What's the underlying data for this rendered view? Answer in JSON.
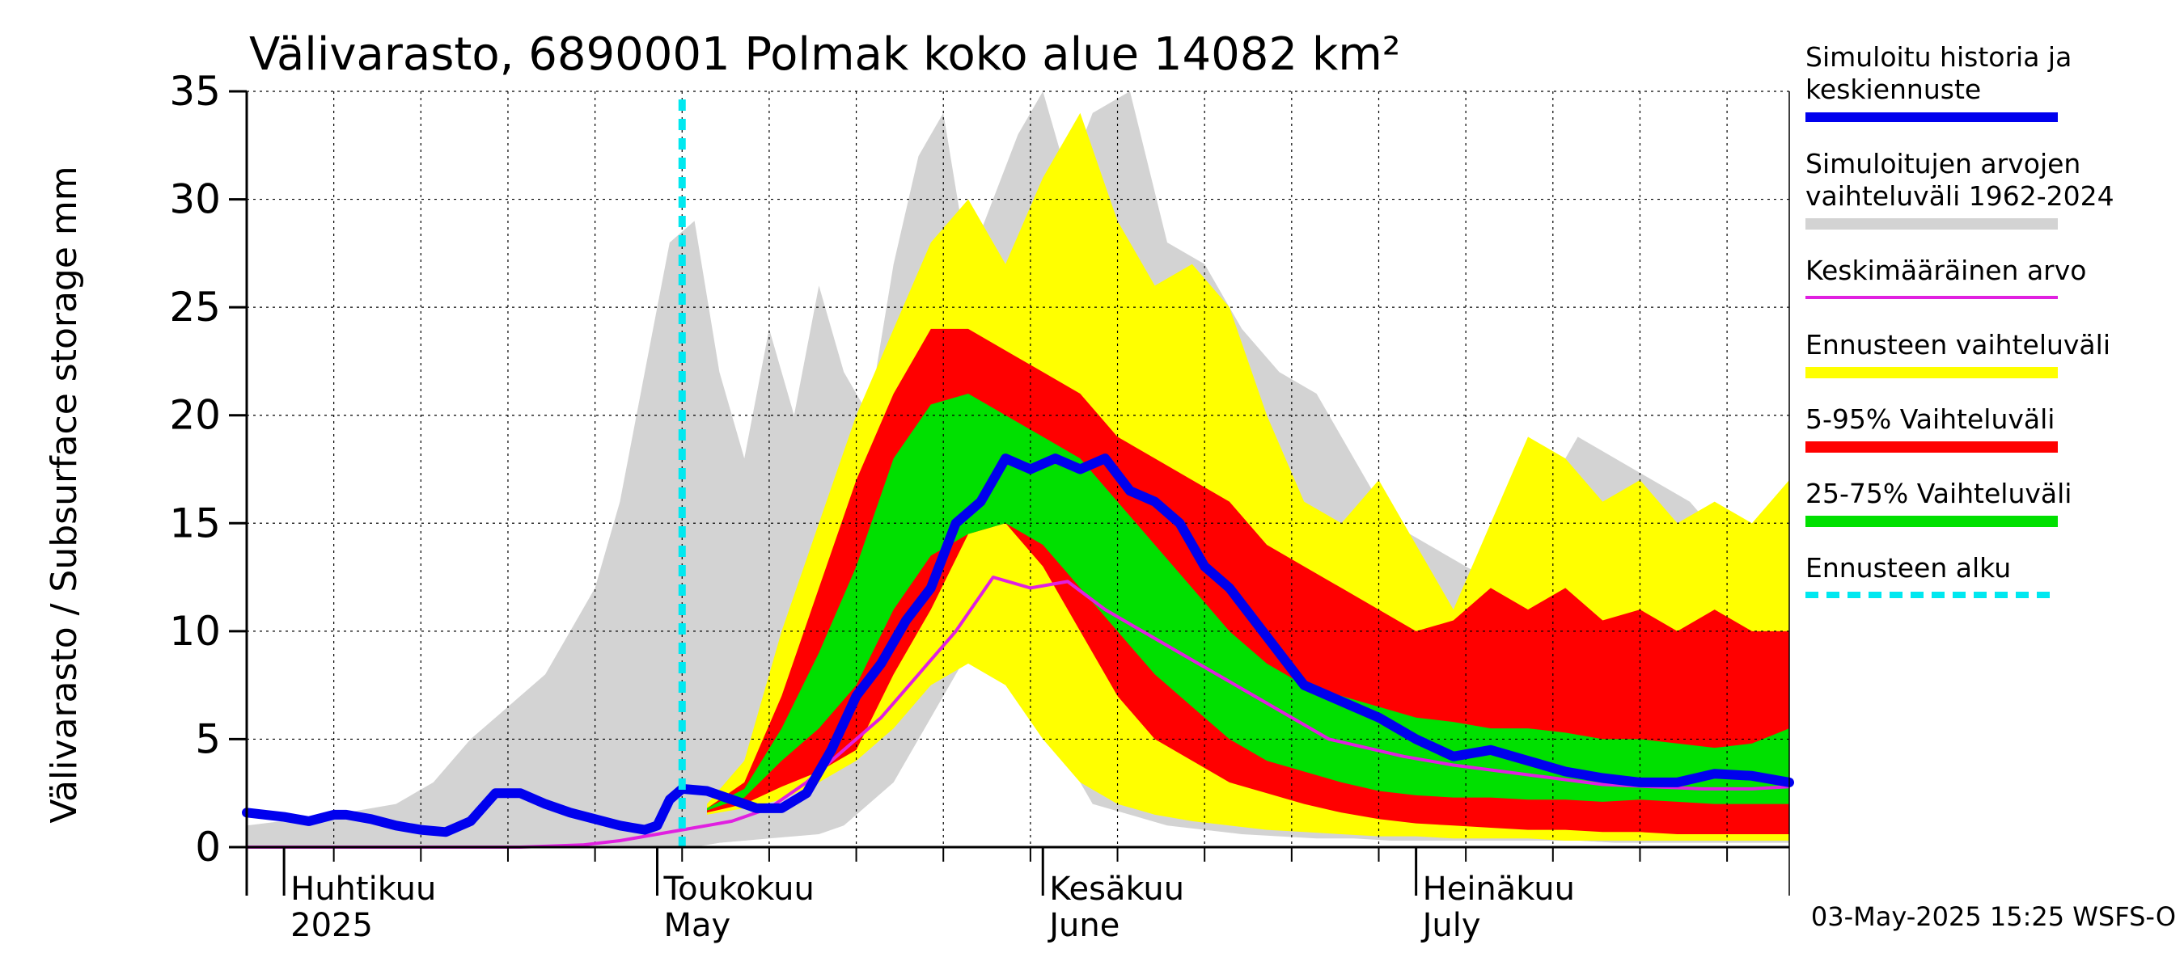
{
  "chart_data": {
    "type": "area",
    "title": "Välivarasto, 6890001 Polmak koko alue 14082 km²",
    "ylabel": "Välivarasto / Subsurface storage  mm",
    "ylim": [
      0,
      35
    ],
    "yticks": [
      0,
      5,
      10,
      15,
      20,
      25,
      30,
      35
    ],
    "x_start": "2025-03-29",
    "x_end": "2025-07-31",
    "month_labels": [
      {
        "date": "2025-04-01",
        "fi": "Huhtikuu",
        "en": "2025"
      },
      {
        "date": "2025-05-01",
        "fi": "Toukokuu",
        "en": "May"
      },
      {
        "date": "2025-06-01",
        "fi": "Kesäkuu",
        "en": "June"
      },
      {
        "date": "2025-07-01",
        "fi": "Heinäkuu",
        "en": "July"
      }
    ],
    "forecast_start": "2025-05-03",
    "footer": "03-May-2025 15:25 WSFS-O",
    "colors": {
      "history": "#0000ee",
      "hist_range": "#d3d3d3",
      "mean": "#e020e0",
      "forecast_range": "#ffff00",
      "p5_95": "#ff0000",
      "p25_75": "#00e000",
      "forecast_start": "#00e8f0",
      "white_min": "#ffffff",
      "grid": "#000000"
    },
    "legend": [
      {
        "key": "history",
        "lines": [
          "Simuloitu historia ja",
          "keskiennuste"
        ],
        "style": "line-thick",
        "color": "#0000ee"
      },
      {
        "key": "hist_range",
        "lines": [
          "Simuloitujen arvojen",
          "vaihteluväli 1962-2024"
        ],
        "style": "band",
        "color": "#d3d3d3"
      },
      {
        "key": "mean",
        "lines": [
          "Keskimääräinen arvo"
        ],
        "style": "line-thin",
        "color": "#e020e0"
      },
      {
        "key": "forecast_range",
        "lines": [
          "Ennusteen vaihteluväli"
        ],
        "style": "band",
        "color": "#ffff00"
      },
      {
        "key": "p5_95",
        "lines": [
          "5-95% Vaihteluväli"
        ],
        "style": "band",
        "color": "#ff0000"
      },
      {
        "key": "p25_75",
        "lines": [
          "25-75% Vaihteluväli"
        ],
        "style": "band",
        "color": "#00e000"
      },
      {
        "key": "forecast_start",
        "lines": [
          "Ennusteen alku"
        ],
        "style": "dashed",
        "color": "#00e8f0"
      }
    ],
    "hist_range": {
      "dates": [
        "2025-03-29",
        "2025-04-05",
        "2025-04-10",
        "2025-04-13",
        "2025-04-16",
        "2025-04-18",
        "2025-04-20",
        "2025-04-22",
        "2025-04-24",
        "2025-04-26",
        "2025-04-28",
        "2025-04-30",
        "2025-05-02",
        "2025-05-04",
        "2025-05-06",
        "2025-05-08",
        "2025-05-10",
        "2025-05-12",
        "2025-05-14",
        "2025-05-16",
        "2025-05-18",
        "2025-05-20",
        "2025-05-22",
        "2025-05-24",
        "2025-05-26",
        "2025-05-28",
        "2025-05-30",
        "2025-06-01",
        "2025-06-03",
        "2025-06-05",
        "2025-06-08",
        "2025-06-11",
        "2025-06-14",
        "2025-06-17",
        "2025-06-20",
        "2025-06-23",
        "2025-06-26",
        "2025-06-29",
        "2025-07-02",
        "2025-07-05",
        "2025-07-08",
        "2025-07-11",
        "2025-07-14",
        "2025-07-17",
        "2025-07-20",
        "2025-07-23",
        "2025-07-26",
        "2025-07-29",
        "2025-07-31"
      ],
      "low": [
        0,
        0,
        0,
        0,
        0,
        0,
        0,
        0,
        0,
        0,
        0,
        0,
        0,
        0,
        0.2,
        0.3,
        0.4,
        0.5,
        0.6,
        1,
        2,
        3,
        5,
        7,
        9,
        10.5,
        10,
        8,
        4,
        2,
        1.5,
        1,
        0.8,
        0.6,
        0.5,
        0.4,
        0.4,
        0.3,
        0.3,
        0.3,
        0.3,
        0.3,
        0.3,
        0.2,
        0.2,
        0.2,
        0.2,
        0.2,
        0.2
      ],
      "high": [
        1,
        1.5,
        2,
        3,
        5,
        6,
        7,
        8,
        10,
        12,
        16,
        22,
        28,
        29,
        22,
        18,
        24,
        20,
        26,
        22,
        20,
        27,
        32,
        34,
        27,
        30,
        33,
        35,
        31,
        34,
        35,
        28,
        27,
        24,
        22,
        21,
        18,
        15,
        14,
        13,
        12,
        16,
        19,
        18,
        17,
        16,
        14,
        15,
        15
      ]
    },
    "forecast_range": {
      "dates": [
        "2025-05-05",
        "2025-05-08",
        "2025-05-11",
        "2025-05-14",
        "2025-05-17",
        "2025-05-20",
        "2025-05-23",
        "2025-05-26",
        "2025-05-29",
        "2025-06-01",
        "2025-06-04",
        "2025-06-07",
        "2025-06-10",
        "2025-06-13",
        "2025-06-16",
        "2025-06-19",
        "2025-06-22",
        "2025-06-25",
        "2025-06-28",
        "2025-07-01",
        "2025-07-04",
        "2025-07-07",
        "2025-07-10",
        "2025-07-13",
        "2025-07-16",
        "2025-07-19",
        "2025-07-22",
        "2025-07-25",
        "2025-07-28",
        "2025-07-31"
      ],
      "low": [
        1.5,
        1.8,
        2.2,
        3,
        4,
        5.5,
        7.5,
        8.5,
        7.5,
        5,
        3,
        2,
        1.5,
        1.2,
        1,
        0.8,
        0.7,
        0.6,
        0.5,
        0.5,
        0.4,
        0.4,
        0.4,
        0.3,
        0.3,
        0.3,
        0.3,
        0.3,
        0.3,
        0.3
      ],
      "high": [
        2,
        4,
        10,
        15,
        20,
        24,
        28,
        30,
        27,
        31,
        34,
        29,
        26,
        27,
        25,
        20,
        16,
        15,
        17,
        14,
        11,
        15,
        19,
        18,
        16,
        17,
        15,
        16,
        15,
        17
      ]
    },
    "p5_95": {
      "dates": [
        "2025-05-05",
        "2025-05-08",
        "2025-05-11",
        "2025-05-14",
        "2025-05-17",
        "2025-05-20",
        "2025-05-23",
        "2025-05-26",
        "2025-05-29",
        "2025-06-01",
        "2025-06-04",
        "2025-06-07",
        "2025-06-10",
        "2025-06-13",
        "2025-06-16",
        "2025-06-19",
        "2025-06-22",
        "2025-06-25",
        "2025-06-28",
        "2025-07-01",
        "2025-07-04",
        "2025-07-07",
        "2025-07-10",
        "2025-07-13",
        "2025-07-16",
        "2025-07-19",
        "2025-07-22",
        "2025-07-25",
        "2025-07-28",
        "2025-07-31"
      ],
      "low": [
        1.6,
        2,
        2.8,
        3.5,
        4.5,
        8,
        11,
        14.5,
        15,
        13,
        10,
        7,
        5,
        4,
        3,
        2.5,
        2,
        1.6,
        1.3,
        1.1,
        1,
        0.9,
        0.8,
        0.8,
        0.7,
        0.7,
        0.6,
        0.6,
        0.6,
        0.6
      ],
      "high": [
        1.8,
        3,
        7,
        12,
        17,
        21,
        24,
        24,
        23,
        22,
        21,
        19,
        18,
        17,
        16,
        14,
        13,
        12,
        11,
        10,
        10.5,
        12,
        11,
        12,
        10.5,
        11,
        10,
        11,
        10,
        10
      ]
    },
    "p25_75": {
      "dates": [
        "2025-05-05",
        "2025-05-08",
        "2025-05-11",
        "2025-05-14",
        "2025-05-17",
        "2025-05-20",
        "2025-05-23",
        "2025-05-26",
        "2025-05-29",
        "2025-06-01",
        "2025-06-04",
        "2025-06-07",
        "2025-06-10",
        "2025-06-13",
        "2025-06-16",
        "2025-06-19",
        "2025-06-22",
        "2025-06-25",
        "2025-06-28",
        "2025-07-01",
        "2025-07-04",
        "2025-07-07",
        "2025-07-10",
        "2025-07-13",
        "2025-07-16",
        "2025-07-19",
        "2025-07-22",
        "2025-07-25",
        "2025-07-28",
        "2025-07-31"
      ],
      "low": [
        1.7,
        2.3,
        4,
        5.5,
        7.5,
        11,
        13.5,
        14.5,
        15,
        14,
        12,
        10,
        8,
        6.5,
        5,
        4,
        3.5,
        3,
        2.6,
        2.4,
        2.3,
        2.3,
        2.2,
        2.2,
        2.1,
        2.2,
        2.1,
        2,
        2,
        2
      ],
      "high": [
        1.8,
        2.7,
        5.5,
        9,
        13,
        18,
        20.5,
        21,
        20,
        19,
        18,
        16,
        14,
        12,
        10,
        8.5,
        7.5,
        7,
        6.5,
        6,
        5.8,
        5.5,
        5.5,
        5.3,
        5,
        5,
        4.8,
        4.6,
        4.8,
        5.5
      ]
    },
    "history": {
      "dates": [
        "2025-03-29",
        "2025-04-01",
        "2025-04-03",
        "2025-04-05",
        "2025-04-06",
        "2025-04-08",
        "2025-04-10",
        "2025-04-12",
        "2025-04-14",
        "2025-04-16",
        "2025-04-18",
        "2025-04-20",
        "2025-04-22",
        "2025-04-24",
        "2025-04-26",
        "2025-04-28",
        "2025-04-29",
        "2025-04-30",
        "2025-05-01",
        "2025-05-02",
        "2025-05-03",
        "2025-05-05",
        "2025-05-07",
        "2025-05-09",
        "2025-05-11",
        "2025-05-13",
        "2025-05-15",
        "2025-05-17",
        "2025-05-19",
        "2025-05-21",
        "2025-05-23",
        "2025-05-25",
        "2025-05-27",
        "2025-05-29",
        "2025-05-31",
        "2025-06-02",
        "2025-06-04",
        "2025-06-06",
        "2025-06-08",
        "2025-06-10",
        "2025-06-12",
        "2025-06-14",
        "2025-06-16",
        "2025-06-18",
        "2025-06-20",
        "2025-06-22",
        "2025-06-24",
        "2025-06-26",
        "2025-06-28",
        "2025-07-01",
        "2025-07-04",
        "2025-07-07",
        "2025-07-10",
        "2025-07-13",
        "2025-07-16",
        "2025-07-19",
        "2025-07-22",
        "2025-07-25",
        "2025-07-28",
        "2025-07-31"
      ],
      "values": [
        1.6,
        1.4,
        1.2,
        1.5,
        1.5,
        1.3,
        1,
        0.8,
        0.7,
        1.2,
        2.5,
        2.5,
        2,
        1.6,
        1.3,
        1,
        0.9,
        0.8,
        1,
        2.2,
        2.7,
        2.6,
        2.2,
        1.8,
        1.8,
        2.5,
        4.5,
        7,
        8.5,
        10.5,
        12,
        15,
        16,
        18,
        17.5,
        18,
        17.5,
        18,
        16.5,
        16,
        15,
        13,
        12,
        10.5,
        9,
        7.5,
        7,
        6.5,
        6,
        5,
        4.2,
        4.5,
        4,
        3.5,
        3.2,
        3,
        3,
        3.4,
        3.3,
        3
      ]
    },
    "mean": {
      "dates": [
        "2025-03-29",
        "2025-04-10",
        "2025-04-20",
        "2025-04-25",
        "2025-04-28",
        "2025-05-01",
        "2025-05-04",
        "2025-05-07",
        "2025-05-10",
        "2025-05-13",
        "2025-05-16",
        "2025-05-19",
        "2025-05-22",
        "2025-05-25",
        "2025-05-28",
        "2025-05-31",
        "2025-06-03",
        "2025-06-06",
        "2025-06-09",
        "2025-06-12",
        "2025-06-15",
        "2025-06-18",
        "2025-06-21",
        "2025-06-24",
        "2025-06-27",
        "2025-06-30",
        "2025-07-04",
        "2025-07-08",
        "2025-07-12",
        "2025-07-16",
        "2025-07-20",
        "2025-07-24",
        "2025-07-28",
        "2025-07-31"
      ],
      "values": [
        0,
        0,
        0,
        0.1,
        0.3,
        0.6,
        0.9,
        1.2,
        1.8,
        3,
        4.5,
        6,
        8,
        10,
        12.5,
        12,
        12.3,
        11,
        10,
        9,
        8,
        7,
        6,
        5,
        4.6,
        4.2,
        3.8,
        3.5,
        3.2,
        2.9,
        2.8,
        2.7,
        2.7,
        2.8
      ]
    }
  }
}
